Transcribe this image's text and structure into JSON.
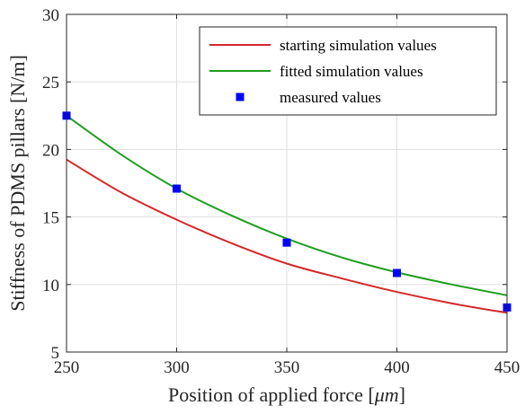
{
  "chart_data": {
    "type": "line",
    "title": "",
    "xlabel_prefix": "Position of applied force [",
    "xlabel_unit": "μm",
    "xlabel_suffix": "]",
    "ylabel": "Stiffness of PDMS pillars [N/m]",
    "xlim": [
      250,
      450
    ],
    "ylim": [
      5,
      30
    ],
    "xticks": [
      "250",
      "300",
      "350",
      "400",
      "450"
    ],
    "yticks": [
      "5",
      "10",
      "15",
      "20",
      "25",
      "30"
    ],
    "grid": true,
    "legend_position": "top-right",
    "series": [
      {
        "name": "starting simulation values",
        "kind": "line",
        "color": "#d62728",
        "x": [
          250,
          275,
          300,
          325,
          350,
          375,
          400,
          425,
          450
        ],
        "y": [
          19.25,
          16.8,
          14.8,
          13.05,
          11.55,
          10.45,
          9.45,
          8.6,
          7.9
        ]
      },
      {
        "name": "fitted simulation values",
        "kind": "line",
        "color": "#1f9e1f",
        "x": [
          250,
          275,
          300,
          325,
          350,
          375,
          400,
          425,
          450
        ],
        "y": [
          22.5,
          19.6,
          17.1,
          15.1,
          13.4,
          12.0,
          10.9,
          10.0,
          9.2
        ]
      },
      {
        "name": "measured values",
        "kind": "marker",
        "color": "#0000ff",
        "x": [
          250,
          300,
          350,
          400,
          450
        ],
        "y": [
          22.5,
          17.1,
          13.1,
          10.85,
          8.3
        ]
      }
    ]
  }
}
